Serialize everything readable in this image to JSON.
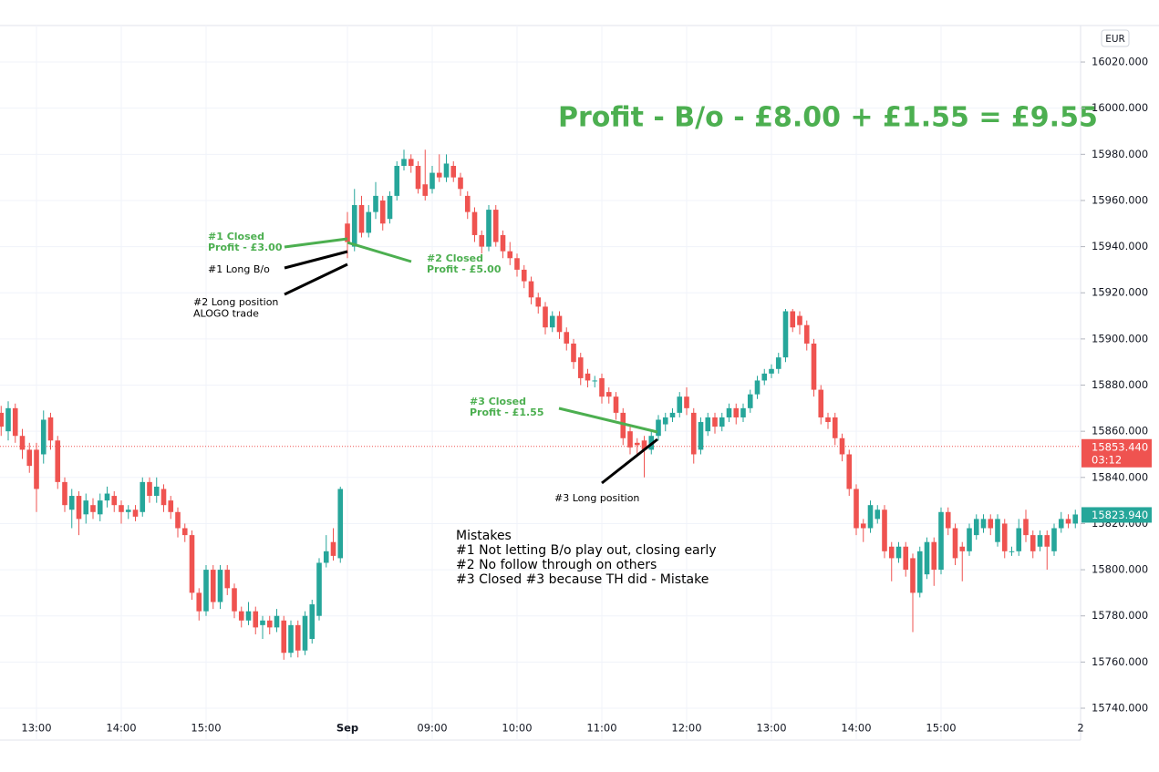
{
  "chart_data": {
    "type": "candlestick",
    "title": "Profit - B/o - £8.00 + £1.55 = £9.55",
    "currency": "EUR",
    "up_color": "#26a69a",
    "down_color": "#ef5350",
    "grid": true,
    "ylim": [
      15735,
      16030
    ],
    "yticks": [
      {
        "value": 15740,
        "label": "15740.000"
      },
      {
        "value": 15760,
        "label": "15760.000"
      },
      {
        "value": 15780,
        "label": "15780.000"
      },
      {
        "value": 15800,
        "label": "15800.000"
      },
      {
        "value": 15820,
        "label": "15820.000"
      },
      {
        "value": 15840,
        "label": "15840.000"
      },
      {
        "value": 15860,
        "label": "15860.000"
      },
      {
        "value": 15880,
        "label": "15880.000"
      },
      {
        "value": 15900,
        "label": "15900.000"
      },
      {
        "value": 15920,
        "label": "15920.000"
      },
      {
        "value": 15940,
        "label": "15940.000"
      },
      {
        "value": 15960,
        "label": "15960.000"
      },
      {
        "value": 15980,
        "label": "15980.000"
      },
      {
        "value": 16000,
        "label": "16000.000"
      },
      {
        "value": 16020,
        "label": "16020.000"
      }
    ],
    "categories": [
      null,
      null,
      null,
      null,
      null,
      "13:00",
      null,
      null,
      null,
      null,
      null,
      null,
      null,
      null,
      null,
      null,
      null,
      "14:00",
      null,
      null,
      null,
      null,
      null,
      null,
      null,
      null,
      null,
      null,
      null,
      "15:00",
      null,
      null,
      null,
      null,
      null,
      null,
      null,
      null,
      null,
      null,
      null,
      null,
      null,
      null,
      null,
      null,
      null,
      null,
      null,
      "Sep",
      null,
      null,
      null,
      null,
      null,
      null,
      null,
      null,
      null,
      null,
      null,
      "09:00",
      null,
      null,
      null,
      null,
      null,
      null,
      null,
      null,
      null,
      null,
      null,
      "10:00",
      null,
      null,
      null,
      null,
      null,
      null,
      null,
      null,
      null,
      null,
      null,
      "11:00",
      null,
      null,
      null,
      null,
      null,
      null,
      null,
      null,
      null,
      null,
      null,
      "12:00",
      null,
      null,
      null,
      null,
      null,
      null,
      null,
      null,
      null,
      null,
      null,
      "13:00",
      null,
      null,
      null,
      null,
      null,
      null,
      null,
      null,
      null,
      null,
      null,
      "14:00",
      null,
      null,
      null,
      null,
      null,
      null,
      null,
      null,
      null,
      null,
      null,
      "15:00",
      null,
      null,
      null,
      null,
      null,
      null,
      null,
      null,
      null,
      null,
      null,
      null,
      null,
      null,
      null,
      null,
      null,
      null,
      null
    ],
    "x_edge_label": "2",
    "candles": [
      [
        15868,
        15871,
        15858,
        15862
      ],
      [
        15860,
        15873,
        15856,
        15870
      ],
      [
        15870,
        15872,
        15855,
        15858
      ],
      [
        15858,
        15861,
        15848,
        15852
      ],
      [
        15852,
        15855,
        15842,
        15845
      ],
      [
        15852,
        15855,
        15825,
        15835
      ],
      [
        15850,
        15869,
        15846,
        15865
      ],
      [
        15866,
        15868,
        15852,
        15856
      ],
      [
        15856,
        15858,
        15835,
        15838
      ],
      [
        15838,
        15840,
        15825,
        15828
      ],
      [
        15826,
        15835,
        15818,
        15832
      ],
      [
        15832,
        15834,
        15815,
        15822
      ],
      [
        15824,
        15833,
        15820,
        15830
      ],
      [
        15828,
        15831,
        15822,
        15825
      ],
      [
        15824,
        15833,
        15821,
        15830
      ],
      [
        15830,
        15836,
        15827,
        15833
      ],
      [
        15832,
        15834,
        15825,
        15828
      ],
      [
        15828,
        15830,
        15820,
        15825
      ],
      [
        15825,
        15828,
        15822,
        15826
      ],
      [
        15826,
        15828,
        15821,
        15823
      ],
      [
        15825,
        15840,
        15823,
        15838
      ],
      [
        15838,
        15840,
        15829,
        15832
      ],
      [
        15832,
        15840,
        15829,
        15836
      ],
      [
        15835,
        15837,
        15825,
        15828
      ],
      [
        15830,
        15832,
        15822,
        15825
      ],
      [
        15825,
        15827,
        15814,
        15818
      ],
      [
        15818,
        15820,
        15812,
        15815
      ],
      [
        15815,
        15817,
        15787,
        15790
      ],
      [
        15790,
        15792,
        15778,
        15782
      ],
      [
        15782,
        15802,
        15780,
        15800
      ],
      [
        15800,
        15802,
        15783,
        15786
      ],
      [
        15786,
        15802,
        15783,
        15800
      ],
      [
        15800,
        15802,
        15789,
        15792
      ],
      [
        15792,
        15794,
        15779,
        15782
      ],
      [
        15782,
        15784,
        15775,
        15778
      ],
      [
        15778,
        15786,
        15776,
        15782
      ],
      [
        15782,
        15784,
        15772,
        15775
      ],
      [
        15776,
        15780,
        15770,
        15778
      ],
      [
        15778,
        15780,
        15772,
        15775
      ],
      [
        15775,
        15783,
        15773,
        15780
      ],
      [
        15778,
        15780,
        15761,
        15764
      ],
      [
        15764,
        15778,
        15762,
        15776
      ],
      [
        15776,
        15778,
        15762,
        15765
      ],
      [
        15765,
        15782,
        15763,
        15780
      ],
      [
        15770,
        15787,
        15768,
        15785
      ],
      [
        15780,
        15805,
        15778,
        15803
      ],
      [
        15803,
        15815,
        15801,
        15808
      ],
      [
        15812,
        15818,
        15804,
        15806
      ],
      [
        15805,
        15836,
        15803,
        15835
      ],
      [
        15950,
        15955,
        15935,
        15942
      ],
      [
        15940,
        15965,
        15938,
        15958
      ],
      [
        15958,
        15962,
        15944,
        15946
      ],
      [
        15946,
        15958,
        15944,
        15955
      ],
      [
        15955,
        15968,
        15952,
        15962
      ],
      [
        15960,
        15962,
        15947,
        15950
      ],
      [
        15952,
        15964,
        15950,
        15962
      ],
      [
        15962,
        15977,
        15960,
        15975
      ],
      [
        15975,
        15982,
        15973,
        15978
      ],
      [
        15978,
        15980,
        15972,
        15975
      ],
      [
        15975,
        15977,
        15963,
        15965
      ],
      [
        15967,
        15982,
        15960,
        15962
      ],
      [
        15965,
        15975,
        15963,
        15972
      ],
      [
        15972,
        15980,
        15968,
        15970
      ],
      [
        15970,
        15980,
        15968,
        15976
      ],
      [
        15975,
        15977,
        15968,
        15970
      ],
      [
        15970,
        15972,
        15962,
        15965
      ],
      [
        15962,
        15964,
        15952,
        15955
      ],
      [
        15955,
        15957,
        15942,
        15945
      ],
      [
        15945,
        15947,
        15937,
        15940
      ],
      [
        15940,
        15958,
        15938,
        15956
      ],
      [
        15956,
        15958,
        15940,
        15942
      ],
      [
        15945,
        15947,
        15935,
        15938
      ],
      [
        15938,
        15942,
        15932,
        15935
      ],
      [
        15935,
        15937,
        15927,
        15930
      ],
      [
        15930,
        15932,
        15922,
        15925
      ],
      [
        15925,
        15927,
        15915,
        15918
      ],
      [
        15918,
        15920,
        15911,
        15914
      ],
      [
        15914,
        15916,
        15902,
        15905
      ],
      [
        15905,
        15912,
        15903,
        15910
      ],
      [
        15910,
        15912,
        15900,
        15903
      ],
      [
        15903,
        15905,
        15895,
        15898
      ],
      [
        15898,
        15900,
        15887,
        15890
      ],
      [
        15892,
        15894,
        15880,
        15883
      ],
      [
        15885,
        15887,
        15879,
        15882
      ],
      [
        15882,
        15884,
        15879,
        15882
      ],
      [
        15883,
        15885,
        15872,
        15875
      ],
      [
        15877,
        15879,
        15872,
        15875
      ],
      [
        15875,
        15877,
        15865,
        15868
      ],
      [
        15868,
        15870,
        15854,
        15857
      ],
      [
        15860,
        15862,
        15850,
        15853
      ],
      [
        15855,
        15857,
        15850,
        15854
      ],
      [
        15856,
        15858,
        15840,
        15852
      ],
      [
        15852,
        15860,
        15850,
        15858
      ],
      [
        15858,
        15867,
        15856,
        15865
      ],
      [
        15863,
        15868,
        15860,
        15866
      ],
      [
        15866,
        15870,
        15864,
        15868
      ],
      [
        15868,
        15877,
        15866,
        15875
      ],
      [
        15875,
        15879,
        15867,
        15870
      ],
      [
        15868,
        15870,
        15846,
        15850
      ],
      [
        15852,
        15866,
        15850,
        15864
      ],
      [
        15860,
        15868,
        15858,
        15866
      ],
      [
        15866,
        15868,
        15859,
        15862
      ],
      [
        15862,
        15868,
        15860,
        15866
      ],
      [
        15866,
        15872,
        15864,
        15870
      ],
      [
        15870,
        15872,
        15863,
        15866
      ],
      [
        15866,
        15872,
        15864,
        15870
      ],
      [
        15870,
        15878,
        15868,
        15876
      ],
      [
        15876,
        15884,
        15874,
        15882
      ],
      [
        15882,
        15887,
        15880,
        15885
      ],
      [
        15885,
        15889,
        15883,
        15887
      ],
      [
        15887,
        15894,
        15885,
        15892
      ],
      [
        15892,
        15913,
        15890,
        15912
      ],
      [
        15912,
        15913,
        15903,
        15905
      ],
      [
        15910,
        15912,
        15902,
        15906
      ],
      [
        15906,
        15908,
        15895,
        15898
      ],
      [
        15898,
        15900,
        15875,
        15878
      ],
      [
        15878,
        15880,
        15863,
        15866
      ],
      [
        15866,
        15868,
        15861,
        15864
      ],
      [
        15866,
        15868,
        15854,
        15857
      ],
      [
        15857,
        15859,
        15847,
        15850
      ],
      [
        15850,
        15852,
        15832,
        15835
      ],
      [
        15835,
        15837,
        15815,
        15818
      ],
      [
        15820,
        15822,
        15812,
        15818
      ],
      [
        15818,
        15830,
        15816,
        15828
      ],
      [
        15822,
        15828,
        15820,
        15826
      ],
      [
        15826,
        15828,
        15805,
        15808
      ],
      [
        15810,
        15812,
        15795,
        15805
      ],
      [
        15805,
        15812,
        15803,
        15810
      ],
      [
        15810,
        15812,
        15797,
        15800
      ],
      [
        15805,
        15807,
        15773,
        15790
      ],
      [
        15790,
        15810,
        15788,
        15808
      ],
      [
        15798,
        15814,
        15796,
        15812
      ],
      [
        15812,
        15814,
        15793,
        15800
      ],
      [
        15800,
        15827,
        15798,
        15825
      ],
      [
        15825,
        15827,
        15815,
        15818
      ],
      [
        15818,
        15820,
        15802,
        15805
      ],
      [
        15810,
        15812,
        15795,
        15808
      ],
      [
        15808,
        15820,
        15806,
        15818
      ],
      [
        15815,
        15824,
        15813,
        15822
      ],
      [
        15818,
        15824,
        15816,
        15822
      ],
      [
        15822,
        15824,
        15815,
        15818
      ],
      [
        15812,
        15824,
        15810,
        15822
      ],
      [
        15820,
        15822,
        15805,
        15808
      ],
      [
        15808,
        15810,
        15806,
        15808
      ],
      [
        15808,
        15822,
        15806,
        15818
      ],
      [
        15822,
        15826,
        15812,
        15815
      ],
      [
        15815,
        15817,
        15805,
        15808
      ],
      [
        15810,
        15817,
        15808,
        15815
      ],
      [
        15815,
        15817,
        15800,
        15810
      ],
      [
        15808,
        15820,
        15806,
        15818
      ],
      [
        15818,
        15825,
        15816,
        15822
      ],
      [
        15822,
        15824,
        15818,
        15820
      ],
      [
        15820,
        15826,
        15818,
        15823.94
      ]
    ],
    "last_price": {
      "value": 15853.44,
      "label": "15853.440",
      "countdown": "03:12",
      "color": "#ef5350"
    },
    "price_marker": {
      "value": 15823.94,
      "label": "15823.940",
      "color": "#26a69a"
    },
    "notes": [
      {
        "lines": [
          "#1 Closed",
          "Profit - £3.00"
        ],
        "color": "#4caf50"
      },
      {
        "lines": [
          "#1 Long B/o"
        ],
        "color": "#000000"
      },
      {
        "lines": [
          "#2 Long position",
          "ALOGO trade"
        ],
        "color": "#000000"
      },
      {
        "lines": [
          "#2 Closed",
          "Profit - £5.00"
        ],
        "color": "#4caf50"
      },
      {
        "lines": [
          "#3 Closed",
          "Profit - £1.55"
        ],
        "color": "#4caf50"
      },
      {
        "lines": [
          "#3 Long position"
        ],
        "color": "#000000"
      },
      {
        "lines": [
          "Mistakes",
          "#1  Not letting B/o play out, closing early",
          "#2  No follow through on others",
          "#3  Closed #3 because TH did - Mistake"
        ],
        "color": "#000000"
      }
    ]
  }
}
